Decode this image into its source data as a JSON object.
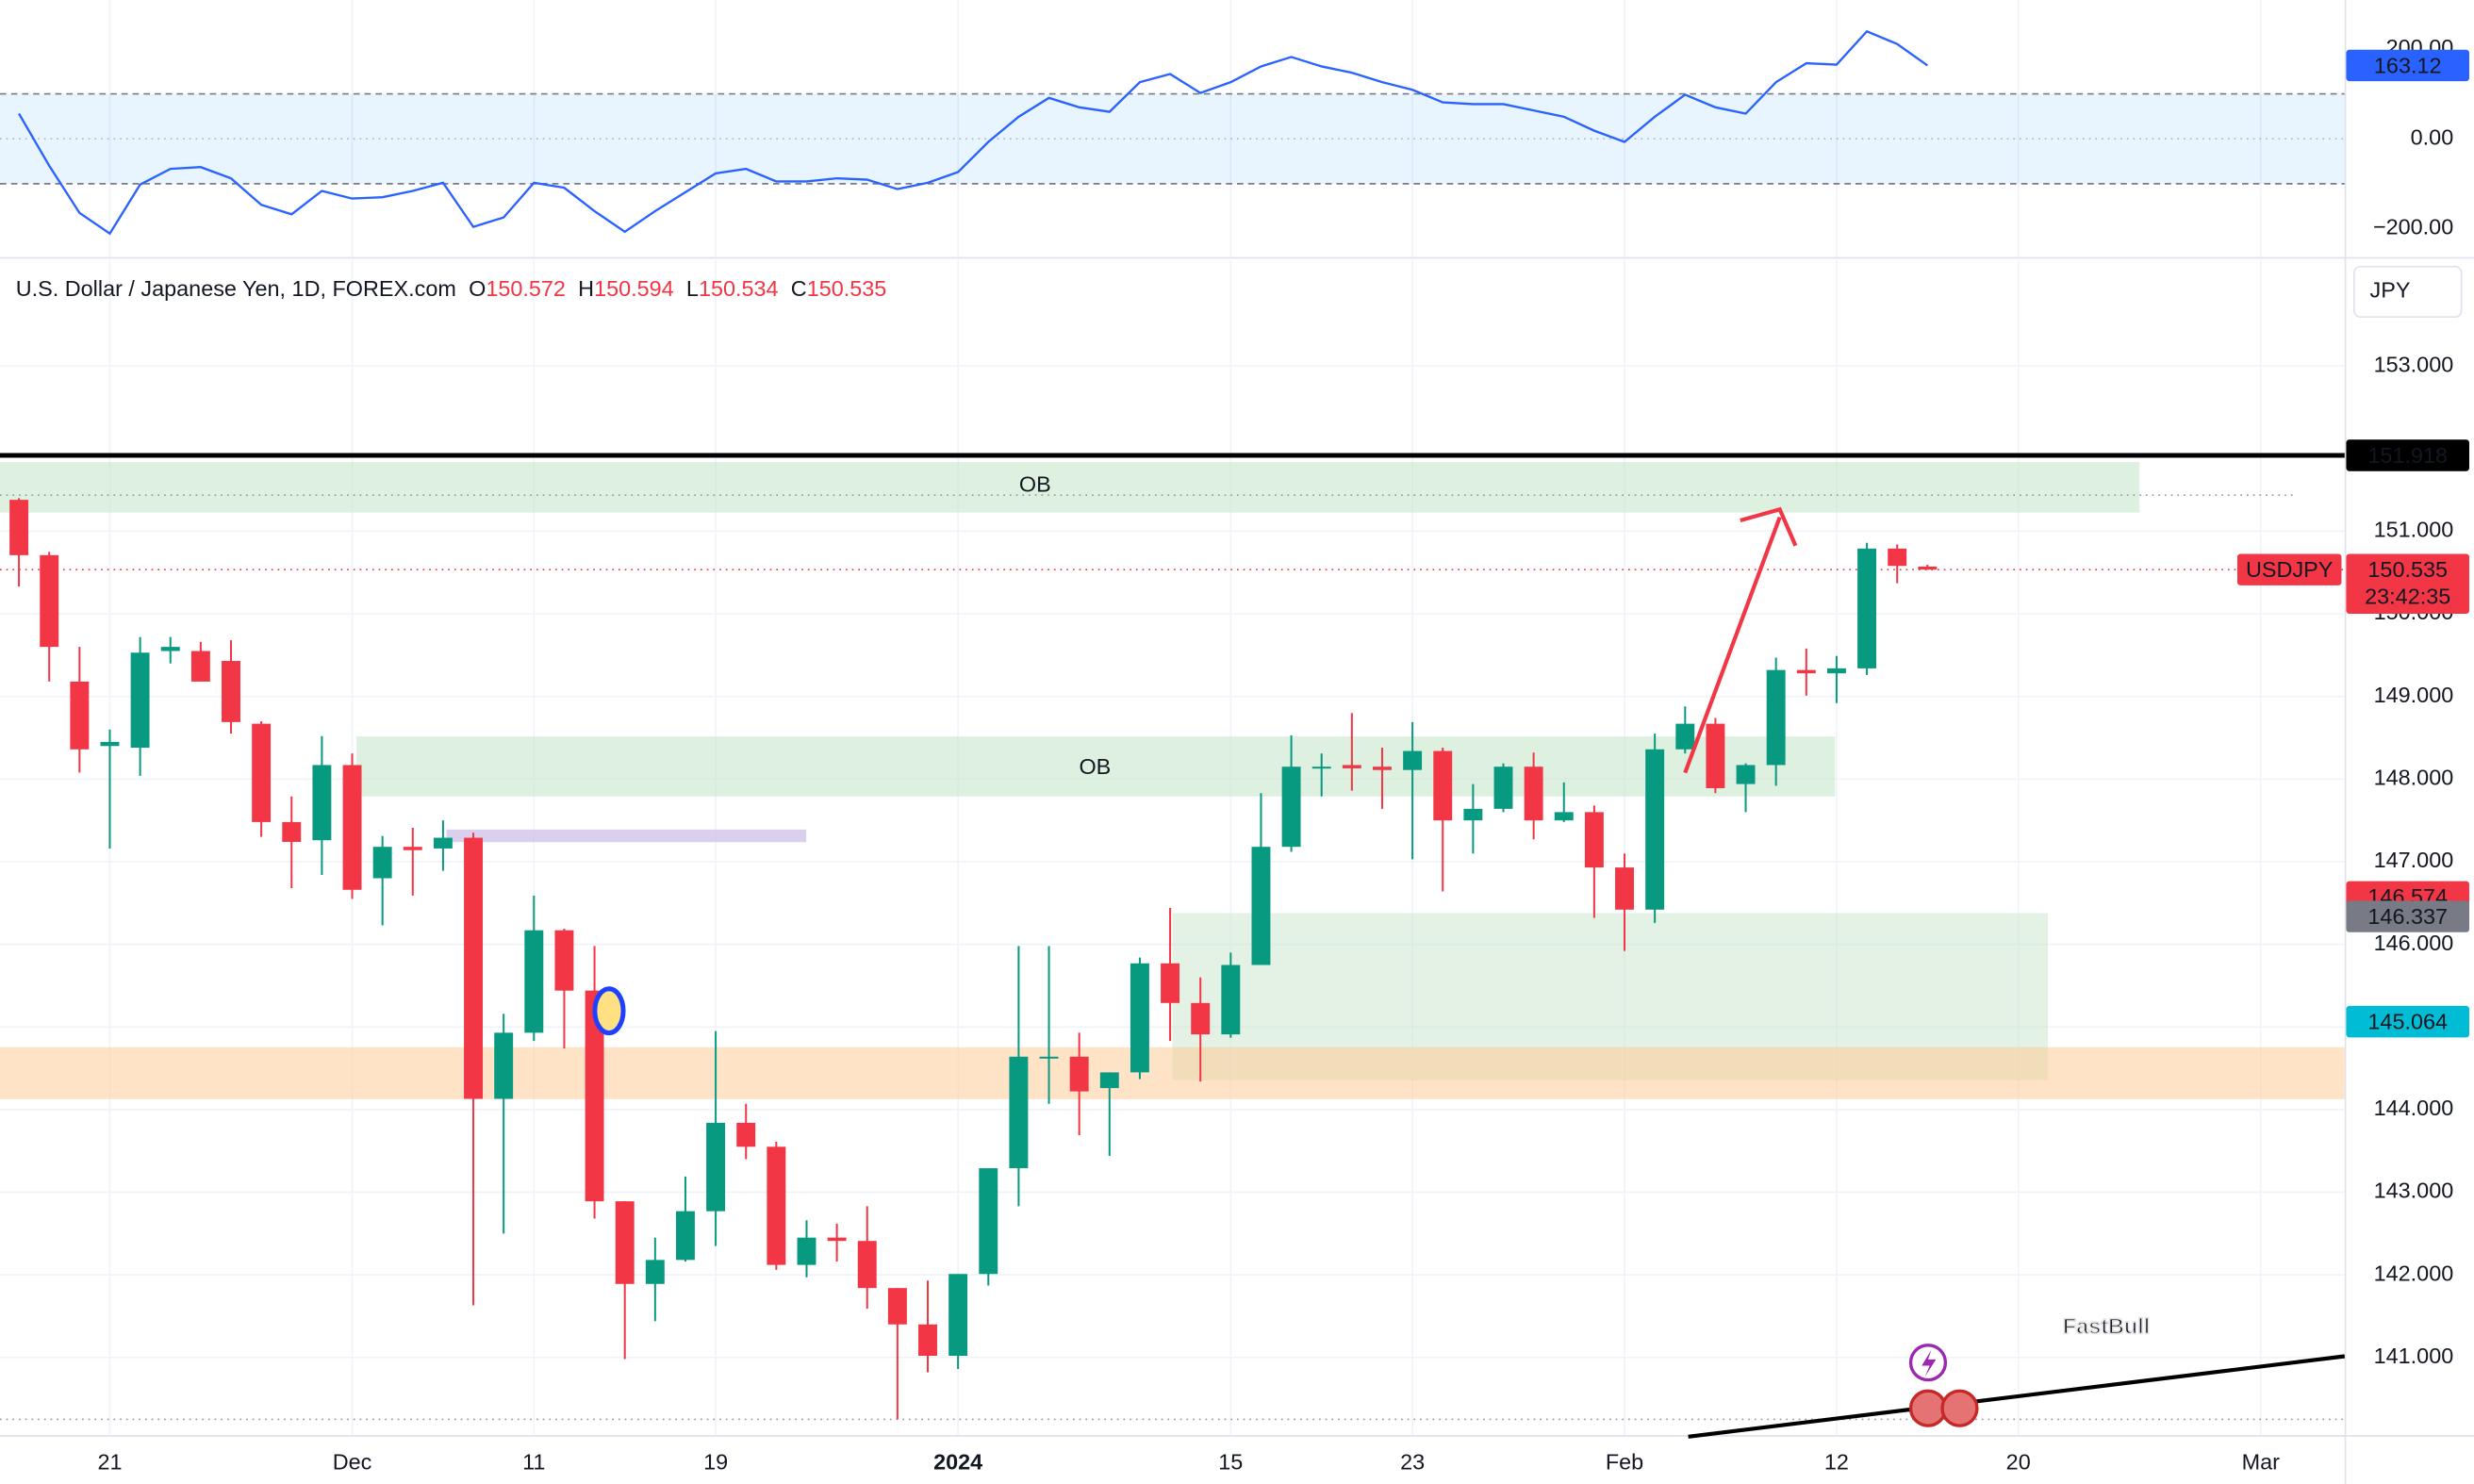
{
  "chart_data": [
    {
      "type": "line",
      "series": [
        {
          "color": "#2962ff",
          "values": [
            56,
            -60,
            -165,
            -211,
            -102,
            -67,
            -63,
            -88,
            -147,
            -168,
            -116,
            -133,
            -130,
            -116,
            -98,
            -196,
            -175,
            -98,
            -109,
            -161,
            -207,
            -161,
            -119,
            -77,
            -67,
            -95,
            -95,
            -88,
            -91,
            -112,
            -98,
            -74,
            -7,
            49,
            91,
            70,
            60,
            126,
            144,
            102,
            126,
            161,
            182,
            161,
            147,
            126,
            109,
            81,
            77,
            77,
            63,
            49,
            18,
            -7,
            49,
            98,
            70,
            56,
            126,
            168,
            165,
            239,
            211,
            163.12
          ]
        }
      ],
      "ylim": [
        -263.2,
        308.8
      ],
      "yticks": [
        {
          "value": 200,
          "label": "200.00"
        },
        {
          "value": 0,
          "label": "0.00"
        },
        {
          "value": -200,
          "label": "−200.00"
        }
      ],
      "levels": [
        100,
        -100
      ],
      "band_color": "#2196f3"
    },
    {
      "type": "candlestick",
      "title": "U.S. Dollar / Japanese Yen, 1D, FOREX.com",
      "ohlc_letters": [
        "O",
        "H",
        "L",
        "C"
      ],
      "symbol": "USDJPY",
      "countdown": "23:42:35",
      "currency": "JPY",
      "watermark": "FastBull",
      "annotations": [
        "OB",
        "OB"
      ],
      "up_color": "#089981",
      "down_color": "#f23645",
      "open": [
        151.38,
        150.71,
        149.18,
        148.4,
        148.38,
        149.55,
        149.55,
        149.43,
        148.67,
        147.48,
        147.26,
        148.17,
        146.8,
        147.18,
        147.16,
        147.29,
        144.13,
        144.93,
        146.17,
        145.44,
        142.89,
        141.89,
        142.18,
        142.77,
        143.84,
        143.55,
        142.12,
        142.45,
        142.41,
        141.84,
        141.4,
        141.02,
        142.01,
        143.29,
        144.62,
        144.64,
        144.26,
        144.45,
        145.77,
        145.29,
        144.91,
        145.75,
        147.18,
        148.13,
        148.17,
        148.15,
        148.11,
        148.34,
        147.5,
        147.64,
        148.15,
        147.5,
        147.6,
        146.93,
        146.42,
        148.36,
        148.67,
        147.94,
        148.17,
        149.32,
        149.28,
        149.34,
        150.79,
        150.572
      ],
      "high": [
        151.4,
        150.75,
        149.6,
        148.6,
        149.72,
        149.72,
        149.66,
        149.68,
        148.7,
        147.79,
        148.52,
        148.31,
        147.31,
        147.41,
        147.5,
        147.35,
        145.16,
        146.59,
        146.19,
        145.98,
        142.89,
        142.45,
        143.19,
        144.95,
        144.07,
        143.61,
        142.66,
        142.62,
        142.83,
        141.84,
        141.93,
        142.01,
        143.29,
        145.98,
        145.98,
        144.93,
        144.45,
        145.84,
        146.44,
        145.6,
        145.9,
        147.83,
        148.53,
        148.31,
        148.8,
        148.38,
        148.69,
        148.38,
        147.94,
        148.19,
        148.32,
        147.96,
        147.68,
        147.1,
        148.55,
        148.88,
        148.74,
        148.19,
        149.47,
        149.58,
        149.49,
        150.86,
        150.84,
        150.594
      ],
      "low": [
        150.33,
        149.18,
        148.08,
        147.16,
        148.04,
        149.4,
        149.18,
        148.55,
        147.3,
        146.68,
        146.84,
        146.55,
        146.23,
        146.59,
        146.89,
        141.63,
        142.5,
        144.83,
        144.74,
        142.68,
        140.98,
        141.44,
        142.16,
        142.35,
        143.4,
        142.06,
        141.97,
        142.16,
        141.59,
        140.25,
        140.82,
        140.86,
        141.87,
        142.83,
        144.07,
        143.69,
        143.44,
        144.37,
        144.83,
        144.34,
        144.87,
        145.75,
        147.12,
        147.79,
        147.86,
        147.64,
        147.03,
        146.64,
        147.1,
        147.6,
        147.27,
        147.48,
        146.32,
        145.92,
        146.26,
        148.31,
        147.83,
        147.6,
        147.92,
        149.01,
        148.92,
        149.26,
        150.37,
        150.534
      ],
      "close": [
        150.71,
        149.6,
        148.36,
        148.45,
        149.53,
        149.6,
        149.18,
        148.69,
        147.48,
        147.24,
        148.17,
        146.66,
        147.18,
        147.14,
        147.29,
        144.13,
        144.93,
        146.17,
        145.44,
        142.89,
        141.89,
        142.18,
        142.77,
        143.84,
        143.55,
        142.12,
        142.45,
        142.41,
        141.84,
        141.4,
        141.02,
        142.01,
        143.29,
        144.64,
        144.64,
        144.22,
        144.45,
        145.77,
        145.29,
        144.91,
        145.75,
        147.18,
        148.15,
        148.15,
        148.13,
        148.11,
        148.34,
        147.5,
        147.64,
        148.15,
        147.5,
        147.6,
        146.93,
        146.42,
        148.36,
        148.67,
        147.89,
        148.17,
        149.32,
        149.28,
        149.34,
        150.79,
        150.58,
        150.535
      ],
      "xlim": [
        -0.625,
        76.77
      ],
      "xticks": [
        {
          "value": 3,
          "label": "21"
        },
        {
          "value": 11,
          "label": "Dec"
        },
        {
          "value": 17,
          "label": "11"
        },
        {
          "value": 23,
          "label": "19"
        },
        {
          "value": 31,
          "label": "2024"
        },
        {
          "value": 40,
          "label": "15"
        },
        {
          "value": 46,
          "label": "23"
        },
        {
          "value": 53,
          "label": "Feb"
        },
        {
          "value": 60,
          "label": "12"
        },
        {
          "value": 66,
          "label": "20"
        },
        {
          "value": 74,
          "label": "Mar"
        }
      ],
      "ylim": [
        140.06,
        154.28
      ],
      "yticks": [
        {
          "value": 141,
          "label": "141.000"
        },
        {
          "value": 142,
          "label": "142.000"
        },
        {
          "value": 143,
          "label": "143.000"
        },
        {
          "value": 144,
          "label": "144.000"
        },
        {
          "value": 145,
          "label": "145.000"
        },
        {
          "value": 146,
          "label": "146.000"
        },
        {
          "value": 147,
          "label": "147.000"
        },
        {
          "value": 148,
          "label": "148.000"
        },
        {
          "value": 149,
          "label": "149.000"
        },
        {
          "value": 150,
          "label": "150.000"
        },
        {
          "value": 151,
          "label": "151.000"
        },
        {
          "value": 153,
          "label": "153.000"
        }
      ],
      "grid": true,
      "price_lines": [
        {
          "value": 151.918,
          "color": "#000000"
        }
      ],
      "price_labels": [
        {
          "value": 146.574,
          "color": "#f23645"
        },
        {
          "value": 146.337,
          "color": "#787b86"
        },
        {
          "value": 145.064,
          "color": "#00bcd4"
        }
      ]
    }
  ]
}
